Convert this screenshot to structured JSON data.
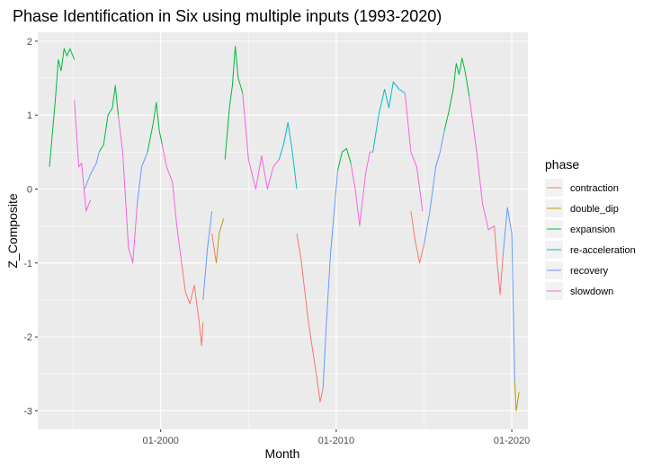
{
  "chart_data": {
    "type": "line",
    "title": "Phase Identification in Six using multiple inputs (1993-2020)",
    "xlabel": "Month",
    "ylabel": "Z_Composite",
    "x_ticks": [
      "01-2000",
      "01-2010",
      "01-2020"
    ],
    "y_ticks": [
      "-3",
      "-2",
      "-1",
      "0",
      "1",
      "2"
    ],
    "xlim": [
      "1993-01",
      "2020-12"
    ],
    "ylim": [
      -3.25,
      2.12
    ],
    "grid": true,
    "legend_position": "right",
    "legend_title": "phase",
    "series": [
      {
        "name": "contraction",
        "color": "#F8766D",
        "segments": [
          [
            [
              "2001-03",
              -0.95
            ],
            [
              "2001-06",
              -1.4
            ],
            [
              "2001-09",
              -1.55
            ],
            [
              "2001-12",
              -1.3
            ],
            [
              "2002-02",
              -1.6
            ],
            [
              "2002-03",
              -1.75
            ],
            [
              "2002-05",
              -2.12
            ],
            [
              "2002-06",
              -1.8
            ]
          ],
          [
            [
              "2002-12",
              -0.6
            ],
            [
              "2003-03",
              -1.0
            ]
          ],
          [
            [
              "2007-10",
              -0.6
            ],
            [
              "2008-01",
              -0.95
            ],
            [
              "2008-03",
              -1.3
            ],
            [
              "2008-06",
              -1.8
            ],
            [
              "2008-09",
              -2.2
            ],
            [
              "2008-11",
              -2.45
            ],
            [
              "2009-02",
              -2.88
            ],
            [
              "2009-04",
              -2.7
            ]
          ],
          [
            [
              "2014-04",
              -0.3
            ],
            [
              "2014-07",
              -0.7
            ],
            [
              "2014-10",
              -1.0
            ],
            [
              "2015-01",
              -0.75
            ]
          ],
          [
            [
              "2019-01",
              -0.5
            ],
            [
              "2019-03",
              -1.0
            ],
            [
              "2019-05",
              -1.43
            ],
            [
              "2019-07",
              -0.9
            ]
          ]
        ]
      },
      {
        "name": "double_dip",
        "color": "#B79F00",
        "segments": [
          [
            [
              "2003-03",
              -1.0
            ],
            [
              "2003-05",
              -0.6
            ],
            [
              "2003-08",
              -0.4
            ]
          ],
          [
            [
              "2020-03",
              -2.6
            ],
            [
              "2020-04",
              -3.0
            ],
            [
              "2020-06",
              -2.75
            ]
          ]
        ]
      },
      {
        "name": "expansion",
        "color": "#00BA38",
        "segments": [
          [
            [
              "1993-09",
              0.3
            ],
            [
              "1994-01",
              1.2
            ],
            [
              "1994-03",
              1.75
            ],
            [
              "1994-05",
              1.6
            ],
            [
              "1994-07",
              1.9
            ],
            [
              "1994-09",
              1.8
            ],
            [
              "1994-11",
              1.9
            ],
            [
              "1995-02",
              1.75
            ]
          ],
          [
            [
              "1996-07",
              0.5
            ],
            [
              "1996-10",
              0.6
            ],
            [
              "1997-01",
              1.0
            ],
            [
              "1997-04",
              1.1
            ],
            [
              "1997-06",
              1.4
            ],
            [
              "1997-08",
              1.0
            ]
          ],
          [
            [
              "1999-04",
              0.5
            ],
            [
              "1999-08",
              0.9
            ],
            [
              "1999-10",
              1.17
            ],
            [
              "1999-12",
              0.8
            ],
            [
              "2000-02",
              0.6
            ]
          ],
          [
            [
              "2003-09",
              0.4
            ],
            [
              "2003-12",
              1.1
            ],
            [
              "2004-02",
              1.4
            ],
            [
              "2004-04",
              1.93
            ],
            [
              "2004-06",
              1.5
            ],
            [
              "2004-09",
              1.3
            ]
          ],
          [
            [
              "2010-02",
              0.25
            ],
            [
              "2010-05",
              0.5
            ],
            [
              "2010-08",
              0.55
            ],
            [
              "2010-11",
              0.35
            ]
          ],
          [
            [
              "2016-03",
              0.8
            ],
            [
              "2016-06",
              1.05
            ],
            [
              "2016-09",
              1.35
            ],
            [
              "2016-11",
              1.7
            ],
            [
              "2017-01",
              1.55
            ],
            [
              "2017-03",
              1.77
            ],
            [
              "2017-05",
              1.6
            ],
            [
              "2017-08",
              1.25
            ]
          ]
        ]
      },
      {
        "name": "re-acceleration",
        "color": "#00BFC4",
        "segments": [
          [
            [
              "2006-10",
              0.4
            ],
            [
              "2007-01",
              0.6
            ],
            [
              "2007-04",
              0.9
            ],
            [
              "2007-07",
              0.5
            ],
            [
              "2007-10",
              0.0
            ]
          ],
          [
            [
              "2012-02",
              0.5
            ],
            [
              "2012-06",
              1.0
            ],
            [
              "2012-10",
              1.35
            ],
            [
              "2013-01",
              1.1
            ],
            [
              "2013-04",
              1.45
            ],
            [
              "2013-08",
              1.35
            ],
            [
              "2013-12",
              1.3
            ]
          ]
        ]
      },
      {
        "name": "recovery",
        "color": "#619CFF",
        "segments": [
          [
            [
              "1995-09",
              0.0
            ],
            [
              "1996-01",
              0.2
            ],
            [
              "1996-05",
              0.35
            ],
            [
              "1996-07",
              0.5
            ]
          ],
          [
            [
              "1998-09",
              -0.2
            ],
            [
              "1998-12",
              0.3
            ],
            [
              "1999-04",
              0.5
            ]
          ],
          [
            [
              "2002-06",
              -1.5
            ],
            [
              "2002-09",
              -0.8
            ],
            [
              "2002-12",
              -0.3
            ]
          ],
          [
            [
              "2009-04",
              -2.7
            ],
            [
              "2009-06",
              -1.9
            ],
            [
              "2009-09",
              -0.9
            ],
            [
              "2009-12",
              -0.2
            ],
            [
              "2010-02",
              0.25
            ]
          ],
          [
            [
              "2015-01",
              -0.75
            ],
            [
              "2015-05",
              -0.3
            ],
            [
              "2015-09",
              0.3
            ],
            [
              "2015-12",
              0.5
            ],
            [
              "2016-03",
              0.8
            ]
          ],
          [
            [
              "2019-07",
              -0.9
            ],
            [
              "2019-10",
              -0.25
            ],
            [
              "2020-01",
              -0.6
            ],
            [
              "2020-03",
              -2.6
            ]
          ]
        ]
      },
      {
        "name": "slowdown",
        "color": "#F564E3",
        "segments": [
          [
            [
              "1995-02",
              1.2
            ],
            [
              "1995-05",
              0.3
            ],
            [
              "1995-07",
              0.35
            ],
            [
              "1995-10",
              -0.3
            ],
            [
              "1996-01",
              -0.15
            ]
          ],
          [
            [
              "1997-08",
              1.0
            ],
            [
              "1997-11",
              0.5
            ],
            [
              "1998-03",
              -0.8
            ],
            [
              "1998-06",
              -1.0
            ],
            [
              "1998-09",
              -0.2
            ]
          ],
          [
            [
              "2000-02",
              0.6
            ],
            [
              "2000-05",
              0.3
            ],
            [
              "2000-09",
              0.1
            ],
            [
              "2000-12",
              -0.5
            ],
            [
              "2001-03",
              -0.95
            ]
          ],
          [
            [
              "2004-09",
              1.3
            ],
            [
              "2005-01",
              0.4
            ],
            [
              "2005-06",
              0.0
            ],
            [
              "2005-10",
              0.45
            ],
            [
              "2006-02",
              0.0
            ],
            [
              "2006-06",
              0.3
            ],
            [
              "2006-10",
              0.4
            ]
          ],
          [
            [
              "2010-11",
              0.35
            ],
            [
              "2011-02",
              0.0
            ],
            [
              "2011-05",
              -0.5
            ],
            [
              "2011-09",
              0.2
            ],
            [
              "2011-12",
              0.5
            ],
            [
              "2012-02",
              0.5
            ]
          ],
          [
            [
              "2013-12",
              1.3
            ],
            [
              "2014-04",
              0.5
            ],
            [
              "2014-08",
              0.3
            ],
            [
              "2014-12",
              -0.3
            ]
          ],
          [
            [
              "2017-08",
              1.25
            ],
            [
              "2018-01",
              0.5
            ],
            [
              "2018-05",
              -0.2
            ],
            [
              "2018-09",
              -0.55
            ],
            [
              "2019-01",
              -0.5
            ]
          ]
        ]
      }
    ]
  }
}
